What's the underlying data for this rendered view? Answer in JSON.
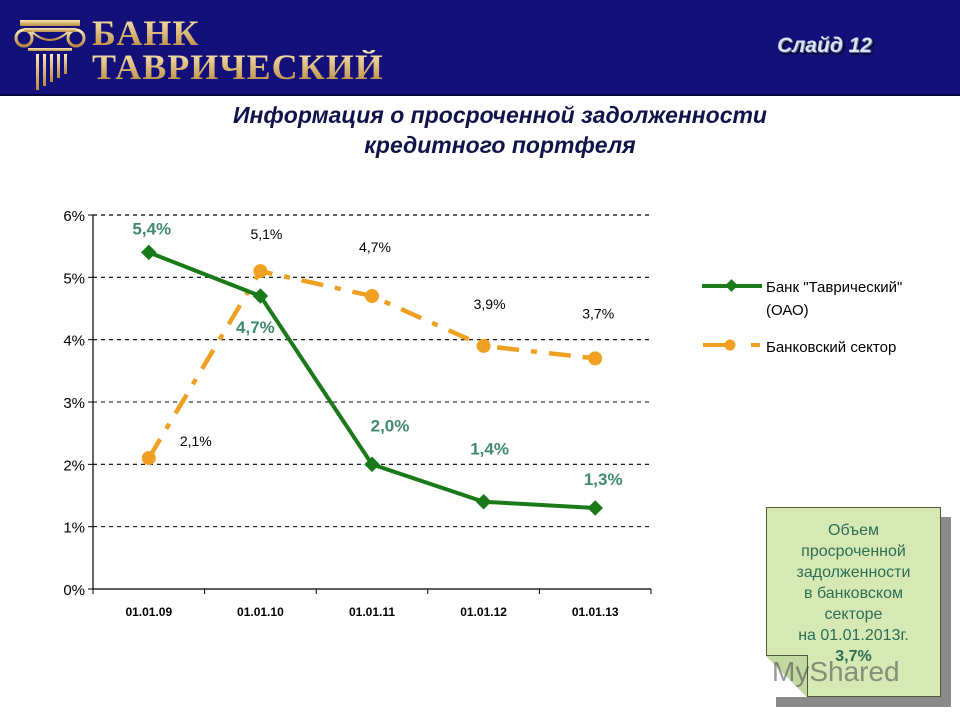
{
  "header": {
    "logo_line1": "БАНК",
    "logo_line2": "ТАВРИЧЕСКИЙ",
    "slide_label": "Слайд 12",
    "logo_icon": "column-icon"
  },
  "title": {
    "line1": "Информация о просроченной задолженности",
    "line2": "кредитного портфеля"
  },
  "colors": {
    "header_bg": "#13107a",
    "bank_series": "#1a7a1a",
    "bank_label": "#3f8a70",
    "sector_series": "#f0a020",
    "note_bg": "#d6e9b5"
  },
  "chart_data": {
    "type": "line",
    "title": "Информация о просроченной задолженности кредитного портфеля",
    "xlabel": "",
    "ylabel": "",
    "categories": [
      "01.01.09",
      "01.01.10",
      "01.01.11",
      "01.01.12",
      "01.01.13"
    ],
    "yticks": [
      "0%",
      "1%",
      "2%",
      "3%",
      "4%",
      "5%",
      "6%"
    ],
    "ylim": [
      0,
      6
    ],
    "grid": "horizontal dashed",
    "legend_position": "right",
    "series": [
      {
        "name": "Банк \"Таврический\" (ОАО)",
        "legend_line1": "Банк \"Таврический\"",
        "legend_line2": "(ОАО)",
        "values": [
          5.4,
          4.7,
          2.0,
          1.4,
          1.3
        ],
        "labels": [
          "5,4%",
          "4,7%",
          "2,0%",
          "1,4%",
          "1,3%"
        ],
        "marker": "diamond",
        "style": "solid"
      },
      {
        "name": "Банковский сектор",
        "legend_line1": "Банковский сектор",
        "values": [
          2.1,
          5.1,
          4.7,
          3.9,
          3.7
        ],
        "labels": [
          "2,1%",
          "5,1%",
          "4,7%",
          "3,9%",
          "3,7%"
        ],
        "marker": "circle",
        "style": "dashed"
      }
    ]
  },
  "note": {
    "lines": [
      "Объем",
      "просроченной",
      "задолженности",
      "в банковском",
      "секторе",
      "на 01.01.2013г."
    ],
    "value": "3,7%"
  },
  "watermark": "MyShared"
}
